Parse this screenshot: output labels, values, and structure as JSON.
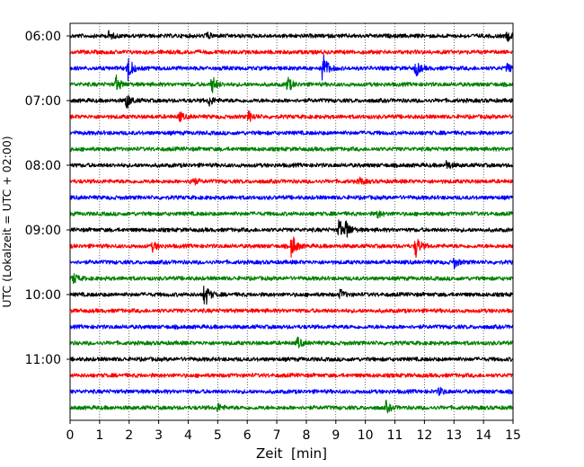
{
  "chart_data": {
    "type": "line",
    "subtype": "helicorder",
    "title": "",
    "xlabel": "Zeit  [min]",
    "ylabel": "UTC (Lokalzeit = UTC + 02:00)",
    "xlim": [
      0,
      15
    ],
    "x_ticks": [
      0,
      1,
      2,
      3,
      4,
      5,
      6,
      7,
      8,
      9,
      10,
      11,
      12,
      13,
      14,
      15
    ],
    "y_tick_labels": [
      "06:00",
      "07:00",
      "08:00",
      "09:00",
      "10:00",
      "11:00"
    ],
    "row_interval_minutes": 15,
    "grid": "x-dotted",
    "colors": [
      "#000000",
      "#ff0000",
      "#0000ff",
      "#008000"
    ],
    "rows": [
      {
        "start": "06:00",
        "events": [
          {
            "t": 1.3,
            "a": 0.25
          },
          {
            "t": 4.6,
            "a": 0.25
          },
          {
            "t": 14.8,
            "a": 0.3
          }
        ]
      },
      {
        "start": "06:15",
        "events": []
      },
      {
        "start": "06:30",
        "events": [
          {
            "t": 1.95,
            "a": 0.9
          },
          {
            "t": 8.55,
            "a": 1.2
          },
          {
            "t": 11.7,
            "a": 0.55
          },
          {
            "t": 14.8,
            "a": 0.3
          }
        ]
      },
      {
        "start": "06:45",
        "events": [
          {
            "t": 1.55,
            "a": 0.55
          },
          {
            "t": 4.8,
            "a": 0.6
          },
          {
            "t": 7.35,
            "a": 0.55
          }
        ]
      },
      {
        "start": "07:00",
        "events": [
          {
            "t": 1.9,
            "a": 0.55
          },
          {
            "t": 4.7,
            "a": 0.35
          }
        ]
      },
      {
        "start": "07:15",
        "events": [
          {
            "t": 3.7,
            "a": 0.3
          },
          {
            "t": 6.05,
            "a": 0.35
          }
        ]
      },
      {
        "start": "07:30",
        "events": []
      },
      {
        "start": "07:45",
        "events": []
      },
      {
        "start": "08:00",
        "events": [
          {
            "t": 12.75,
            "a": 0.3
          }
        ]
      },
      {
        "start": "08:15",
        "events": [
          {
            "t": 4.1,
            "a": 0.35
          },
          {
            "t": 9.8,
            "a": 0.25
          }
        ]
      },
      {
        "start": "08:30",
        "events": []
      },
      {
        "start": "08:45",
        "events": [
          {
            "t": 10.4,
            "a": 0.25
          }
        ]
      },
      {
        "start": "09:00",
        "events": [
          {
            "t": 9.1,
            "a": 0.7
          },
          {
            "t": 9.35,
            "a": 0.55
          }
        ]
      },
      {
        "start": "09:15",
        "events": [
          {
            "t": 2.8,
            "a": 0.3
          },
          {
            "t": 7.5,
            "a": 0.85
          },
          {
            "t": 11.7,
            "a": 0.75
          }
        ]
      },
      {
        "start": "09:30",
        "events": [
          {
            "t": 13.0,
            "a": 0.35
          }
        ]
      },
      {
        "start": "09:45",
        "events": [
          {
            "t": 0.1,
            "a": 0.35
          }
        ]
      },
      {
        "start": "10:00",
        "events": [
          {
            "t": 4.55,
            "a": 0.9
          },
          {
            "t": 9.15,
            "a": 0.3
          }
        ]
      },
      {
        "start": "10:15",
        "events": []
      },
      {
        "start": "10:30",
        "events": []
      },
      {
        "start": "10:45",
        "events": [
          {
            "t": 7.7,
            "a": 0.35
          }
        ]
      },
      {
        "start": "11:00",
        "events": []
      },
      {
        "start": "11:15",
        "events": []
      },
      {
        "start": "11:30",
        "events": [
          {
            "t": 12.5,
            "a": 0.25
          }
        ]
      },
      {
        "start": "11:45",
        "events": [
          {
            "t": 5.0,
            "a": 0.25
          },
          {
            "t": 10.7,
            "a": 0.35
          }
        ]
      }
    ]
  }
}
